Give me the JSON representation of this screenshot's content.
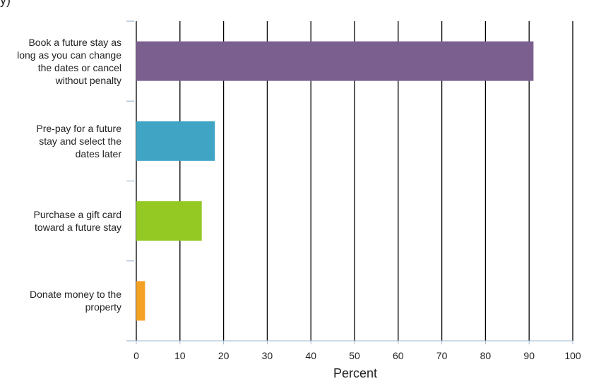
{
  "clipped_title": "y)",
  "chart_data": {
    "type": "bar",
    "orientation": "horizontal",
    "categories": [
      "Book a future stay as\nlong as you can change\nthe dates or cancel\nwithout penalty",
      "Pre-pay for a future\nstay and select the\ndates later",
      "Purchase a gift card\ntoward a future stay",
      "Donate money to the\nproperty"
    ],
    "values": [
      91,
      18,
      15,
      2
    ],
    "colors": [
      "#7b5f8f",
      "#40a4c5",
      "#94c924",
      "#f4a224"
    ],
    "xlabel": "Percent",
    "ylabel": "",
    "xlim": [
      0,
      100
    ],
    "xticks": [
      0,
      10,
      20,
      30,
      40,
      50,
      60,
      70,
      80,
      90,
      100
    ],
    "grid": true
  }
}
